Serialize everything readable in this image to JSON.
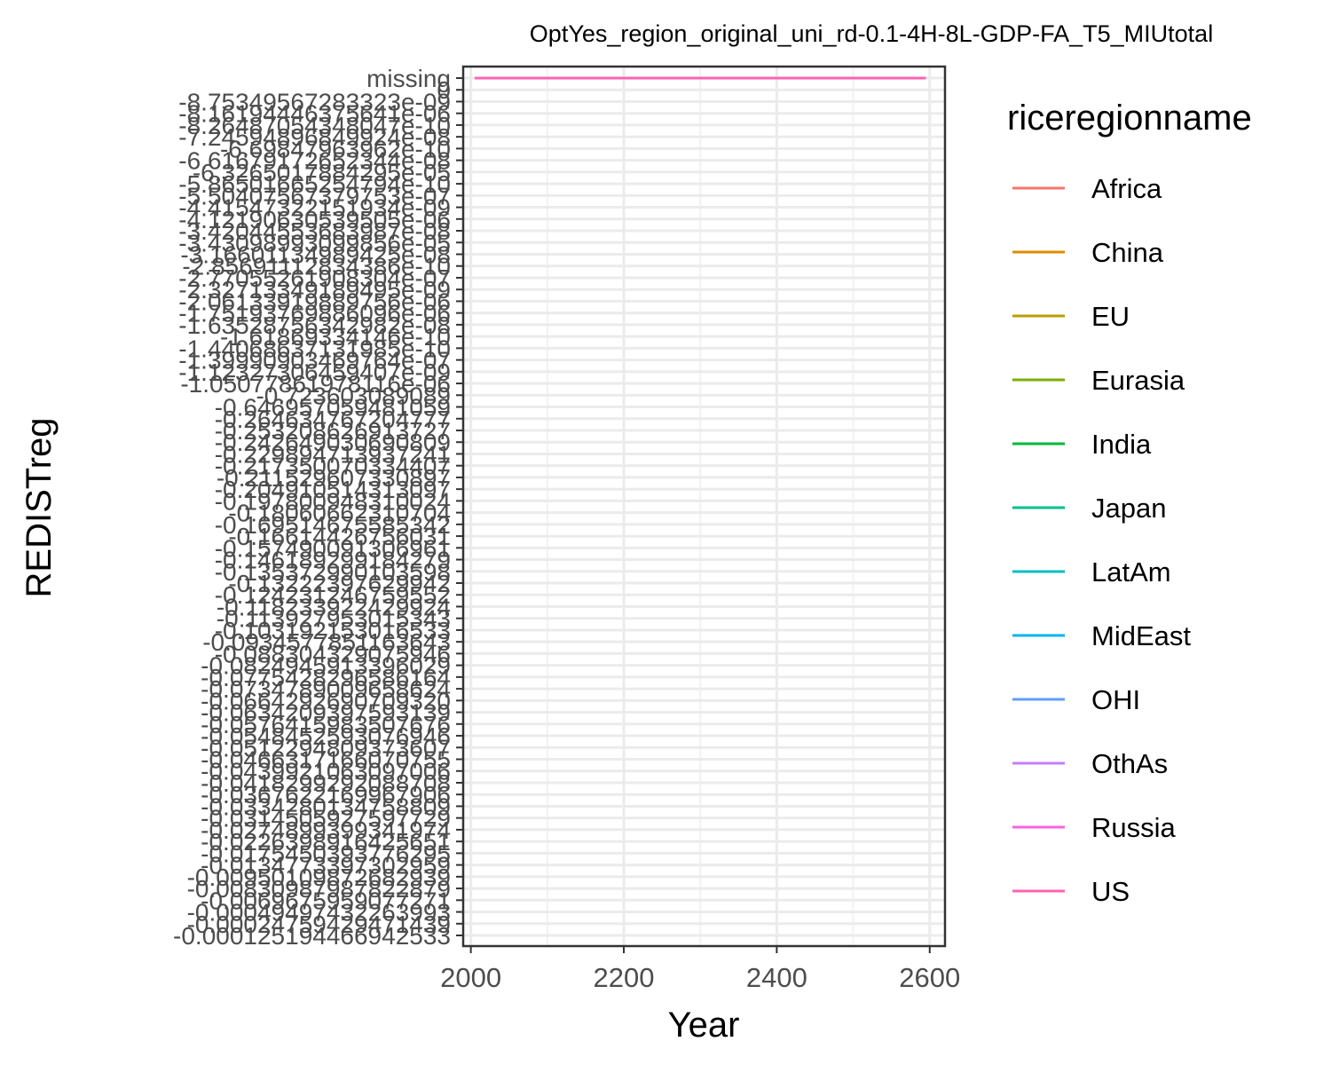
{
  "chart_data": {
    "type": "line",
    "title": "OptYes_region_original_uni_rd-0.1-4H-8L-GDP-FA_T5_MIUtotal",
    "xlabel": "Year",
    "ylabel": "REDISTreg",
    "xlim": [
      1990,
      2620
    ],
    "x_ticks": [
      2000,
      2200,
      2400,
      2600
    ],
    "y_axis_scale": "categorical",
    "y_categories_top_to_bottom": [
      "missing",
      "0",
      "-8.75349567283323e-09",
      "-8.16194446375641e-06",
      "-8.26487054348047e-10",
      "-7.24594896849924e-08",
      "-6.69847963962e-10",
      "-6.61679172652344e-08",
      "-6.3265017884295e-05",
      "-5.86501665254794e-10",
      "-5.50407567379753e-07",
      "-4.41547322151934e-09",
      "-4.12190630539505e-06",
      "-3.42044553683987e-08",
      "-3.43098993099856e-05",
      "-3.16601134989425e-08",
      "-2.85691112834386e-10",
      "-2.77055261908304e-07",
      "-2.32713349189495e-09",
      "-2.06133919889756e-06",
      "-1.75193769886096e-06",
      "-1.63528756342982e-08",
      "-1.61869334146e-10",
      "-1.44068637131985e-10",
      "-1.39990903469764e-07",
      "-1.12327306459407e-09",
      "-1.05077861978116e-06",
      "-0.723603089089",
      "-0.646957059481059",
      "-0.264634767204777",
      "-0.253208626913727",
      "-0.242649030690809",
      "-0.229894713937241",
      "-0.217350070334407",
      "-0.211529607330897",
      "-0.204910514313097",
      "-0.197800948310024",
      "-0.18060662310704",
      "-0.169514675585342",
      "-0.16614426756031",
      "-0.157490091306961",
      "-0.146189299184279",
      "-0.135372990103598",
      "-0.13222397629942",
      "-0.124231246759552",
      "-0.118233922429924",
      "-0.113927953015343",
      "-0.103192153016533",
      "-0.0934577851163643",
      "-0.088304329075946",
      "-0.0824945913396029",
      "-0.0775428296586164",
      "-0.0734789009658624",
      "-0.0664292690709320",
      "-0.0634209397593139",
      "-0.0576415983507676",
      "-0.0548452593076946",
      "-0.0512294809373607",
      "-0.0466317166070755",
      "-0.0439921063097006",
      "-0.0418299292088708",
      "-0.0367622169967906",
      "-0.0334280134758809",
      "-0.0314505927597729",
      "-0.0274899399341974",
      "-0.0226398916425651",
      "-0.0175450393776295",
      "-0.0134773397302959",
      "-0.00950109872682939",
      "-0.00830987987822879",
      "-0.0069675959077271",
      "-0.00049497432263993",
      "-0.00024759429471439",
      "-0.000125194466942533"
    ],
    "series": [
      {
        "name": "US",
        "x": [
          2005,
          2595
        ],
        "y": [
          "missing",
          "missing"
        ]
      }
    ],
    "grid": true,
    "legend_position": "right",
    "legend_title": "riceregionname",
    "legend": [
      {
        "name": "Africa",
        "color": "#F8766D"
      },
      {
        "name": "China",
        "color": "#DE8C00"
      },
      {
        "name": "EU",
        "color": "#B79F00"
      },
      {
        "name": "Eurasia",
        "color": "#7CAE00"
      },
      {
        "name": "India",
        "color": "#00BA38"
      },
      {
        "name": "Japan",
        "color": "#00C08B"
      },
      {
        "name": "LatAm",
        "color": "#00BFC4"
      },
      {
        "name": "MidEast",
        "color": "#00B4F0"
      },
      {
        "name": "OHI",
        "color": "#619CFF"
      },
      {
        "name": "OthAs",
        "color": "#C77CFF"
      },
      {
        "name": "Russia",
        "color": "#F564E3"
      },
      {
        "name": "US",
        "color": "#FF64B0"
      }
    ]
  }
}
